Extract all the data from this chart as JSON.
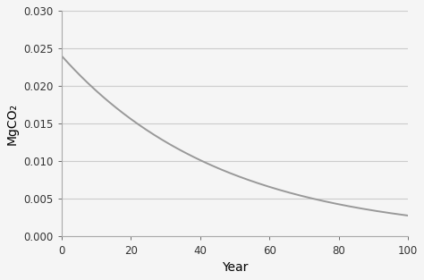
{
  "title": "",
  "xlabel": "Year",
  "ylabel": "MgCO₂",
  "xlim": [
    0,
    100
  ],
  "ylim": [
    0.0,
    0.03
  ],
  "xticks": [
    0,
    20,
    40,
    60,
    80,
    100
  ],
  "yticks": [
    0.0,
    0.005,
    0.01,
    0.015,
    0.02,
    0.025,
    0.03
  ],
  "initial_value": 0.024,
  "decay_rate": 0.0215,
  "line_color": "#999999",
  "line_width": 1.4,
  "background_color": "#f5f5f5",
  "grid_color": "#cccccc",
  "xlabel_fontsize": 10,
  "ylabel_fontsize": 10,
  "tick_fontsize": 8.5
}
